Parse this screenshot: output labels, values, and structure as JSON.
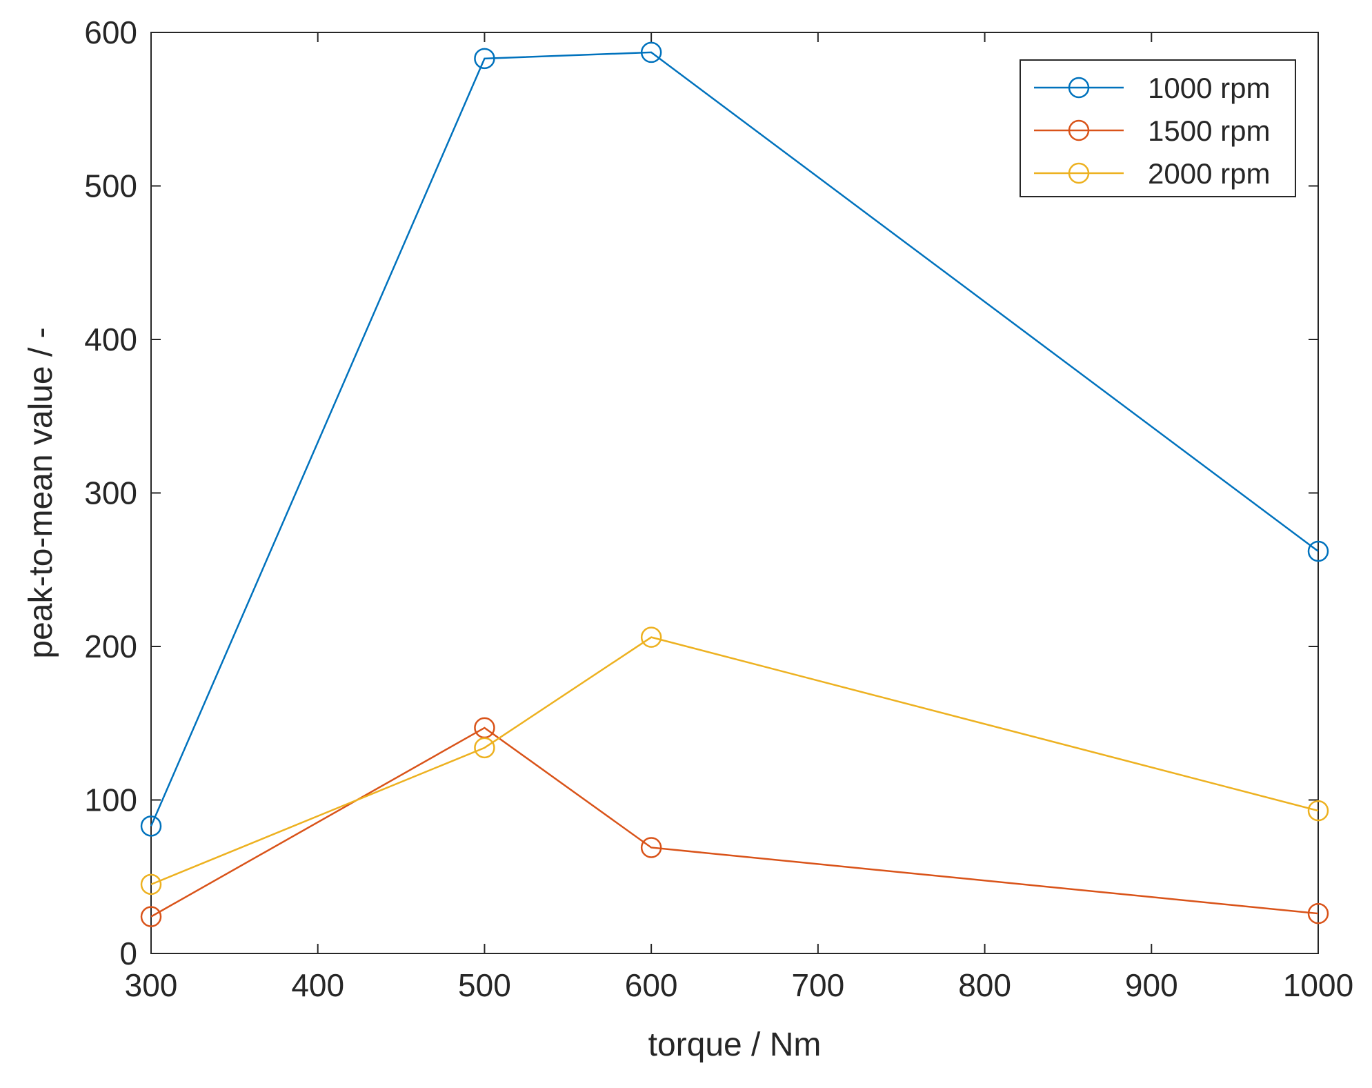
{
  "chart_data": {
    "type": "line",
    "title": "",
    "xlabel": "torque / Nm",
    "ylabel": "peak-to-mean value / -",
    "xlim": [
      300,
      1000
    ],
    "ylim": [
      0,
      600
    ],
    "xticks": [
      300,
      400,
      500,
      600,
      700,
      800,
      900,
      1000
    ],
    "yticks": [
      0,
      100,
      200,
      300,
      400,
      500,
      600
    ],
    "grid": false,
    "legend_position": "top-right",
    "marker": "circle",
    "x": [
      300,
      500,
      600,
      1000
    ],
    "series": [
      {
        "name": "1000 rpm",
        "color": "#0072BD",
        "values": [
          83,
          583,
          587,
          262
        ]
      },
      {
        "name": "1500 rpm",
        "color": "#D95319",
        "values": [
          24,
          147,
          69,
          26
        ]
      },
      {
        "name": "2000 rpm",
        "color": "#EDB120",
        "values": [
          45,
          134,
          206,
          93
        ]
      }
    ]
  }
}
